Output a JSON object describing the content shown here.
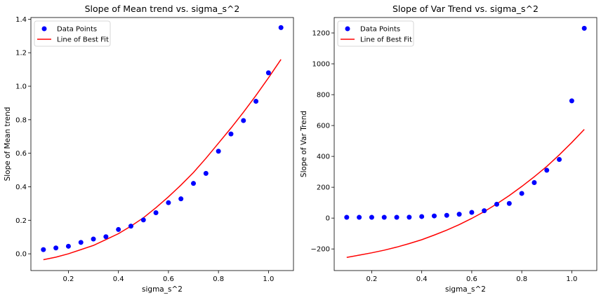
{
  "chart_data": [
    {
      "type": "scatter",
      "title": "Slope of Mean trend vs. sigma_s^2",
      "xlabel": "sigma_s^2",
      "ylabel": "Slope of Mean trend",
      "xlim": [
        0.05,
        1.1
      ],
      "ylim": [
        -0.1,
        1.41
      ],
      "xticks": [
        0.2,
        0.4,
        0.6,
        0.8,
        1.0
      ],
      "xtick_labels": [
        "0.2",
        "0.4",
        "0.6",
        "0.8",
        "1.0"
      ],
      "yticks": [
        0.0,
        0.2,
        0.4,
        0.6,
        0.8,
        1.0,
        1.2,
        1.4
      ],
      "ytick_labels": [
        "0.0",
        "0.2",
        "0.4",
        "0.6",
        "0.8",
        "1.0",
        "1.2",
        "1.4"
      ],
      "grid": false,
      "legend_position": "top-left",
      "series": [
        {
          "name": "Data Points",
          "kind": "scatter",
          "color": "#0000ff",
          "x": [
            0.1,
            0.15,
            0.2,
            0.25,
            0.3,
            0.35,
            0.4,
            0.45,
            0.5,
            0.55,
            0.6,
            0.65,
            0.7,
            0.75,
            0.8,
            0.85,
            0.9,
            0.95,
            1.0,
            1.05
          ],
          "y": [
            0.025,
            0.035,
            0.045,
            0.068,
            0.088,
            0.102,
            0.145,
            0.165,
            0.202,
            0.245,
            0.305,
            0.328,
            0.42,
            0.48,
            0.612,
            0.715,
            0.795,
            0.91,
            1.08,
            1.35
          ]
        },
        {
          "name": "Line of Best Fit",
          "kind": "line",
          "color": "#ff0000",
          "x": [
            0.1,
            0.15,
            0.2,
            0.25,
            0.3,
            0.35,
            0.4,
            0.45,
            0.5,
            0.55,
            0.6,
            0.65,
            0.7,
            0.75,
            0.8,
            0.85,
            0.9,
            0.95,
            1.0,
            1.05
          ],
          "y": [
            -0.035,
            -0.02,
            0.0,
            0.025,
            0.05,
            0.085,
            0.12,
            0.165,
            0.215,
            0.275,
            0.34,
            0.41,
            0.485,
            0.57,
            0.66,
            0.75,
            0.845,
            0.945,
            1.05,
            1.16
          ]
        }
      ]
    },
    {
      "type": "scatter",
      "title": "Slope of Var Trend vs. sigma_s^2",
      "xlabel": "sigma_s^2",
      "ylabel": "Slope of Var Trend",
      "xlim": [
        0.05,
        1.1
      ],
      "ylim": [
        -340,
        1300
      ],
      "xticks": [
        0.2,
        0.4,
        0.6,
        0.8,
        1.0
      ],
      "xtick_labels": [
        "0.2",
        "0.4",
        "0.6",
        "0.8",
        "1.0"
      ],
      "yticks": [
        -200,
        0,
        200,
        400,
        600,
        800,
        1000,
        1200
      ],
      "ytick_labels": [
        "−200",
        "0",
        "200",
        "400",
        "600",
        "800",
        "1000",
        "1200"
      ],
      "grid": false,
      "legend_position": "top-left",
      "series": [
        {
          "name": "Data Points",
          "kind": "scatter",
          "color": "#0000ff",
          "x": [
            0.1,
            0.15,
            0.2,
            0.25,
            0.3,
            0.35,
            0.4,
            0.45,
            0.5,
            0.55,
            0.6,
            0.65,
            0.7,
            0.75,
            0.8,
            0.85,
            0.9,
            0.95,
            1.0,
            1.05
          ],
          "y": [
            5,
            5,
            5,
            5,
            5,
            6,
            10,
            14,
            18,
            25,
            37,
            48,
            90,
            95,
            160,
            230,
            310,
            380,
            760,
            1230
          ]
        },
        {
          "name": "Line of Best Fit",
          "kind": "line",
          "color": "#ff0000",
          "x": [
            0.1,
            0.15,
            0.2,
            0.25,
            0.3,
            0.35,
            0.4,
            0.45,
            0.5,
            0.55,
            0.6,
            0.65,
            0.7,
            0.75,
            0.8,
            0.85,
            0.9,
            0.95,
            1.0,
            1.05
          ],
          "y": [
            -255,
            -240,
            -225,
            -208,
            -188,
            -165,
            -140,
            -110,
            -78,
            -42,
            -2,
            42,
            92,
            146,
            205,
            268,
            335,
            410,
            490,
            575
          ]
        }
      ]
    }
  ]
}
